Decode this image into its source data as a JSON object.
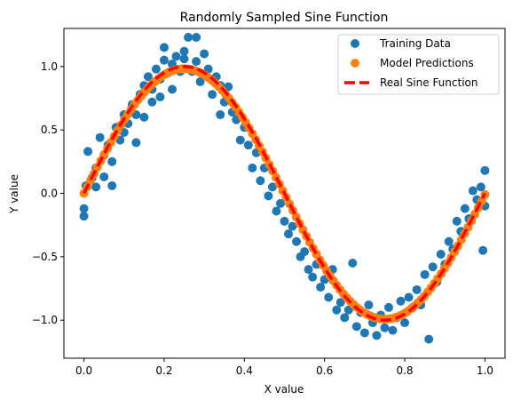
{
  "chart_data": {
    "type": "scatter",
    "title": "Randomly Sampled Sine Function",
    "xlabel": "X value",
    "ylabel": "Y value",
    "xlim": [
      -0.05,
      1.05
    ],
    "ylim": [
      -1.3,
      1.3
    ],
    "xticks": [
      0.0,
      0.2,
      0.4,
      0.6,
      0.8,
      1.0
    ],
    "xtick_labels": [
      "0.0",
      "0.2",
      "0.4",
      "0.6",
      "0.8",
      "1.0"
    ],
    "yticks": [
      -1.0,
      -0.5,
      0.0,
      0.5,
      1.0
    ],
    "ytick_labels": [
      "−1.0",
      "−0.5",
      "0.0",
      "0.5",
      "1.0"
    ],
    "grid": false,
    "legend_position": "top-right",
    "series": [
      {
        "name": "Training Data",
        "kind": "scatter",
        "color": "#1f77b4",
        "points": [
          {
            "x": 0.0,
            "y": -0.12
          },
          {
            "x": 0.0,
            "y": -0.18
          },
          {
            "x": 0.005,
            "y": 0.06
          },
          {
            "x": 0.01,
            "y": 0.33
          },
          {
            "x": 0.02,
            "y": 0.12
          },
          {
            "x": 0.03,
            "y": 0.2
          },
          {
            "x": 0.03,
            "y": 0.05
          },
          {
            "x": 0.04,
            "y": 0.44
          },
          {
            "x": 0.05,
            "y": 0.3
          },
          {
            "x": 0.05,
            "y": 0.13
          },
          {
            "x": 0.06,
            "y": 0.38
          },
          {
            "x": 0.07,
            "y": 0.25
          },
          {
            "x": 0.07,
            "y": 0.06
          },
          {
            "x": 0.08,
            "y": 0.52
          },
          {
            "x": 0.09,
            "y": 0.42
          },
          {
            "x": 0.1,
            "y": 0.48
          },
          {
            "x": 0.1,
            "y": 0.62
          },
          {
            "x": 0.11,
            "y": 0.55
          },
          {
            "x": 0.12,
            "y": 0.7
          },
          {
            "x": 0.13,
            "y": 0.62
          },
          {
            "x": 0.13,
            "y": 0.4
          },
          {
            "x": 0.14,
            "y": 0.78
          },
          {
            "x": 0.15,
            "y": 0.85
          },
          {
            "x": 0.15,
            "y": 0.6
          },
          {
            "x": 0.16,
            "y": 0.92
          },
          {
            "x": 0.17,
            "y": 0.82
          },
          {
            "x": 0.17,
            "y": 0.72
          },
          {
            "x": 0.18,
            "y": 0.98
          },
          {
            "x": 0.19,
            "y": 0.9
          },
          {
            "x": 0.19,
            "y": 0.76
          },
          {
            "x": 0.2,
            "y": 1.05
          },
          {
            "x": 0.2,
            "y": 1.15
          },
          {
            "x": 0.21,
            "y": 0.95
          },
          {
            "x": 0.22,
            "y": 1.02
          },
          {
            "x": 0.22,
            "y": 0.82
          },
          {
            "x": 0.23,
            "y": 1.08
          },
          {
            "x": 0.24,
            "y": 0.96
          },
          {
            "x": 0.25,
            "y": 1.06
          },
          {
            "x": 0.25,
            "y": 1.12
          },
          {
            "x": 0.26,
            "y": 1.23
          },
          {
            "x": 0.27,
            "y": 0.96
          },
          {
            "x": 0.28,
            "y": 1.23
          },
          {
            "x": 0.28,
            "y": 1.04
          },
          {
            "x": 0.29,
            "y": 0.88
          },
          {
            "x": 0.3,
            "y": 1.1
          },
          {
            "x": 0.31,
            "y": 0.98
          },
          {
            "x": 0.32,
            "y": 0.78
          },
          {
            "x": 0.33,
            "y": 0.92
          },
          {
            "x": 0.34,
            "y": 0.85
          },
          {
            "x": 0.34,
            "y": 0.62
          },
          {
            "x": 0.35,
            "y": 0.72
          },
          {
            "x": 0.36,
            "y": 0.84
          },
          {
            "x": 0.37,
            "y": 0.64
          },
          {
            "x": 0.38,
            "y": 0.58
          },
          {
            "x": 0.39,
            "y": 0.42
          },
          {
            "x": 0.4,
            "y": 0.52
          },
          {
            "x": 0.41,
            "y": 0.38
          },
          {
            "x": 0.42,
            "y": 0.2
          },
          {
            "x": 0.43,
            "y": 0.32
          },
          {
            "x": 0.44,
            "y": 0.1
          },
          {
            "x": 0.45,
            "y": 0.2
          },
          {
            "x": 0.46,
            "y": -0.02
          },
          {
            "x": 0.47,
            "y": 0.05
          },
          {
            "x": 0.48,
            "y": -0.14
          },
          {
            "x": 0.49,
            "y": -0.08
          },
          {
            "x": 0.5,
            "y": -0.22
          },
          {
            "x": 0.51,
            "y": -0.32
          },
          {
            "x": 0.52,
            "y": -0.26
          },
          {
            "x": 0.53,
            "y": -0.38
          },
          {
            "x": 0.54,
            "y": -0.5
          },
          {
            "x": 0.55,
            "y": -0.46
          },
          {
            "x": 0.56,
            "y": -0.6
          },
          {
            "x": 0.57,
            "y": -0.66
          },
          {
            "x": 0.58,
            "y": -0.56
          },
          {
            "x": 0.59,
            "y": -0.74
          },
          {
            "x": 0.6,
            "y": -0.68
          },
          {
            "x": 0.61,
            "y": -0.82
          },
          {
            "x": 0.62,
            "y": -0.6
          },
          {
            "x": 0.63,
            "y": -0.92
          },
          {
            "x": 0.64,
            "y": -0.86
          },
          {
            "x": 0.65,
            "y": -0.98
          },
          {
            "x": 0.66,
            "y": -0.92
          },
          {
            "x": 0.67,
            "y": -0.55
          },
          {
            "x": 0.68,
            "y": -1.05
          },
          {
            "x": 0.69,
            "y": -0.94
          },
          {
            "x": 0.7,
            "y": -1.1
          },
          {
            "x": 0.71,
            "y": -0.88
          },
          {
            "x": 0.72,
            "y": -1.02
          },
          {
            "x": 0.73,
            "y": -1.12
          },
          {
            "x": 0.74,
            "y": -0.96
          },
          {
            "x": 0.75,
            "y": -1.06
          },
          {
            "x": 0.76,
            "y": -0.9
          },
          {
            "x": 0.77,
            "y": -1.08
          },
          {
            "x": 0.78,
            "y": -0.98
          },
          {
            "x": 0.79,
            "y": -0.85
          },
          {
            "x": 0.8,
            "y": -1.02
          },
          {
            "x": 0.81,
            "y": -0.82
          },
          {
            "x": 0.82,
            "y": -0.9
          },
          {
            "x": 0.83,
            "y": -0.76
          },
          {
            "x": 0.84,
            "y": -0.88
          },
          {
            "x": 0.85,
            "y": -0.64
          },
          {
            "x": 0.86,
            "y": -1.15
          },
          {
            "x": 0.87,
            "y": -0.58
          },
          {
            "x": 0.88,
            "y": -0.7
          },
          {
            "x": 0.89,
            "y": -0.48
          },
          {
            "x": 0.9,
            "y": -0.56
          },
          {
            "x": 0.91,
            "y": -0.38
          },
          {
            "x": 0.92,
            "y": -0.44
          },
          {
            "x": 0.93,
            "y": -0.22
          },
          {
            "x": 0.94,
            "y": -0.3
          },
          {
            "x": 0.95,
            "y": -0.12
          },
          {
            "x": 0.96,
            "y": -0.2
          },
          {
            "x": 0.97,
            "y": 0.02
          },
          {
            "x": 0.98,
            "y": -0.05
          },
          {
            "x": 0.99,
            "y": 0.05
          },
          {
            "x": 0.995,
            "y": -0.45
          },
          {
            "x": 1.0,
            "y": 0.18
          },
          {
            "x": 1.0,
            "y": -0.1
          }
        ]
      },
      {
        "name": "Model Predictions",
        "kind": "scatter",
        "color": "#ff7f0e",
        "model": "sine",
        "n_points": 120
      },
      {
        "name": "Real Sine Function",
        "kind": "line",
        "color": "#ff0000",
        "style": "dashed",
        "function": "sin(2*pi*x)"
      }
    ]
  }
}
